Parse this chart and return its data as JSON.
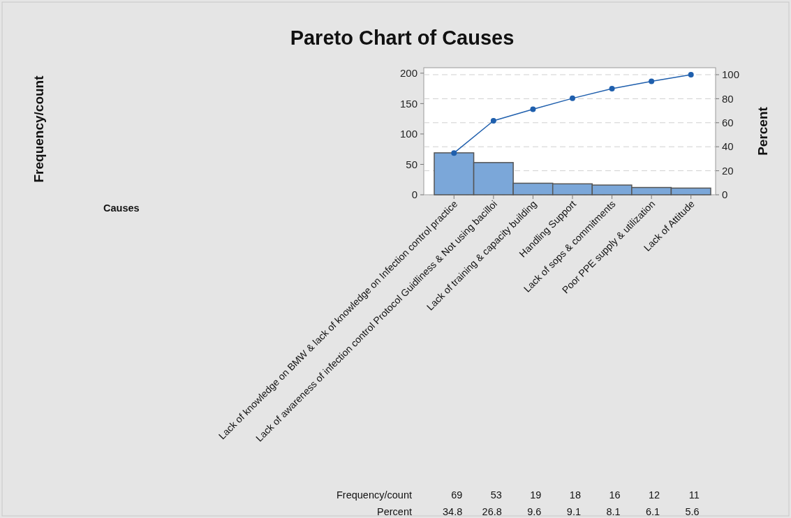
{
  "chart_data": {
    "type": "bar",
    "title": "Pareto Chart of Causes",
    "ylabel": "Frequency/count",
    "y2label": "Percent",
    "categories": [
      "Lack of knowledge on BMW & lack of knowledge on Infection control practice",
      "Lack of awareness of infection control Protocol Guidliness  & Not using bacilloi",
      "Lack of training & capacity building",
      "Handling Support",
      "Lack of sops & commitments",
      "Poor PPE supply & utilization",
      "Lack of Attitude"
    ],
    "series": [
      {
        "color": "#7ba7d9",
        "values": [
          69,
          53,
          19,
          18,
          16,
          12,
          11
        ],
        "value_labels": [
          "69",
          "53",
          "19",
          "18",
          "16",
          "12",
          "11"
        ]
      },
      {
        "type": "line",
        "axis": "y2",
        "color": "#1f5fad",
        "marker": "circle",
        "values": [
          34.8,
          61.6,
          71.2,
          80.3,
          88.4,
          94.4,
          100
        ]
      }
    ],
    "annotations": [
      "Causes",
      "Percent",
      "34.8",
      "26.8",
      "9.6",
      "9.1",
      "8.1",
      "6.1",
      "5.6"
    ],
    "ylim": [
      0,
      209
    ],
    "yticks": [
      0,
      50,
      100,
      150,
      200
    ],
    "y2lim": [
      0,
      105.8
    ],
    "y2ticks": [
      0,
      20,
      40,
      60,
      80,
      100
    ],
    "grid": "y2"
  }
}
